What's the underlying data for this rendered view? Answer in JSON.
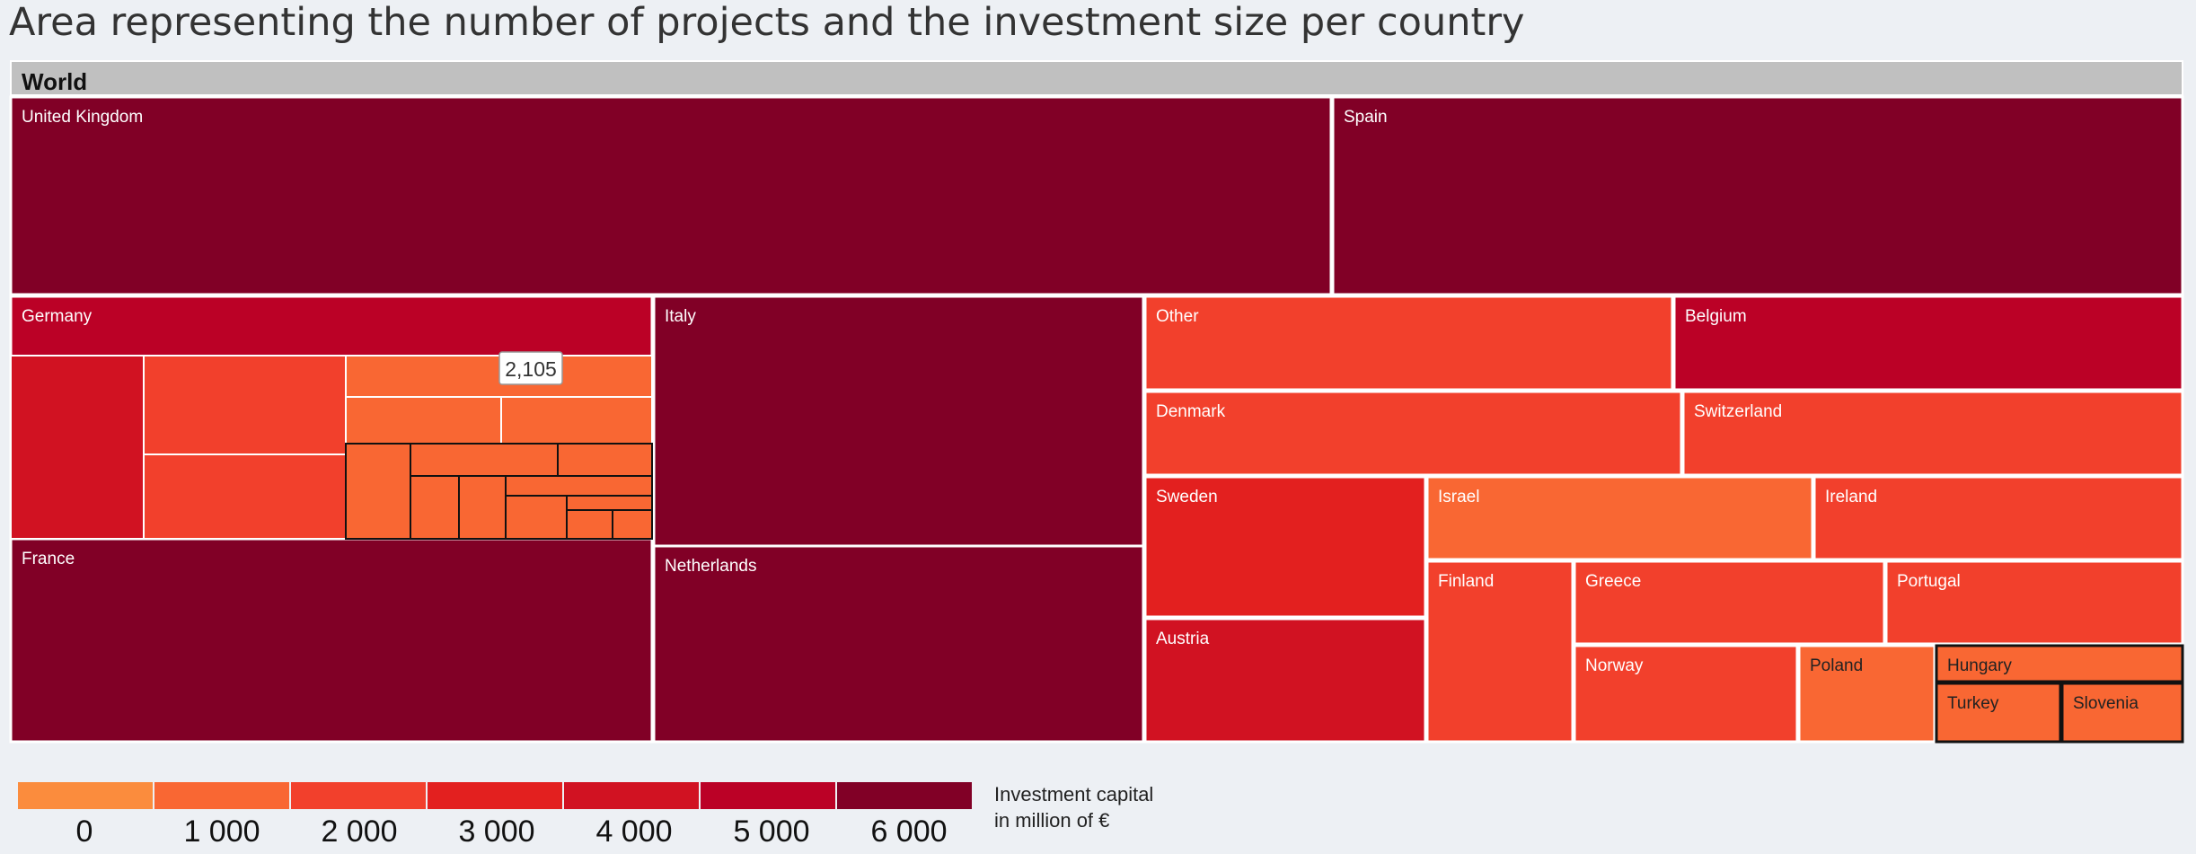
{
  "page": {
    "title": "Area representing the number of projects and the investment size per country"
  },
  "chart_data": {
    "type": "treemap",
    "root_label": "World",
    "tooltip": "2,105",
    "nodes": [
      {
        "name": "United Kingdom",
        "value_color_level": 6000
      },
      {
        "name": "Spain",
        "value_color_level": 6000
      },
      {
        "name": "Germany",
        "value_color_level": 4500
      },
      {
        "name": "Italy",
        "value_color_level": 6000
      },
      {
        "name": "France",
        "value_color_level": 6000
      },
      {
        "name": "Netherlands",
        "value_color_level": 6000
      },
      {
        "name": "Other",
        "value_color_level": 1800
      },
      {
        "name": "Belgium",
        "value_color_level": 5000
      },
      {
        "name": "Denmark",
        "value_color_level": 2300
      },
      {
        "name": "Switzerland",
        "value_color_level": 2300
      },
      {
        "name": "Sweden",
        "value_color_level": 3200
      },
      {
        "name": "Israel",
        "value_color_level": 1400
      },
      {
        "name": "Ireland",
        "value_color_level": 1600
      },
      {
        "name": "Austria",
        "value_color_level": 3500
      },
      {
        "name": "Finland",
        "value_color_level": 2300
      },
      {
        "name": "Greece",
        "value_color_level": 2400
      },
      {
        "name": "Portugal",
        "value_color_level": 1700
      },
      {
        "name": "Norway",
        "value_color_level": 2100
      },
      {
        "name": "Poland",
        "value_color_level": 900
      },
      {
        "name": "Hungary",
        "value_color_level": 900
      },
      {
        "name": "Turkey",
        "value_color_level": 700
      },
      {
        "name": "Slovenia",
        "value_color_level": 800
      }
    ],
    "legend": {
      "ticks": [
        "0",
        "1 000",
        "2 000",
        "3 000",
        "4 000",
        "5 000",
        "6 000"
      ],
      "colors": [
        "#fb8c3d",
        "#f96733",
        "#f2402c",
        "#e3201f",
        "#d11222",
        "#bb0126",
        "#810026"
      ],
      "title_line1": "Investment capital",
      "title_line2": "in million of €"
    }
  }
}
